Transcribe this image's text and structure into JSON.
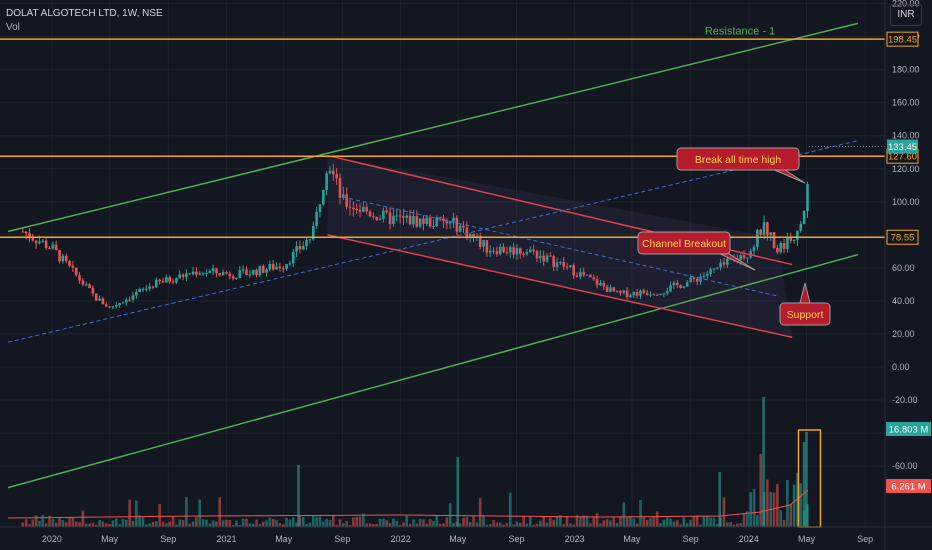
{
  "header": {
    "symbol": "DOLAT ALGOTECH LTD, 1W, NSE",
    "indicator": "Vol",
    "currency": "INR"
  },
  "colors": {
    "up": "#26a69a",
    "down": "#ef5350",
    "hline": "#f5a623",
    "channel_green": "#4caf50",
    "channel_red": "#e0414f",
    "dashed": "#3f6fd6",
    "callout_bg": "#b71c2c",
    "callout_border": "#9e9e9e",
    "callout_text": "#ffd54f",
    "resistance_text": "#4caf50"
  },
  "chart_data": {
    "type": "candlestick",
    "title": "DOLAT ALGOTECH LTD, 1W, NSE",
    "y_ticks": [
      "220.00",
      "200.00",
      "180.00",
      "160.00",
      "140.00",
      "120.00",
      "100.00",
      "80.00",
      "60.00",
      "40.00",
      "20.00",
      "0.00",
      "-20.00",
      "-40.00",
      "-60.00"
    ],
    "ylim": [
      -70,
      230
    ],
    "x_ticks": [
      "2020",
      "May",
      "Sep",
      "2021",
      "May",
      "Sep",
      "2022",
      "May",
      "Sep",
      "2023",
      "May",
      "Sep",
      "2024",
      "May",
      "Sep"
    ],
    "x_range": [
      "2019-10",
      "2024-09"
    ],
    "price_path": [
      [
        "2019-11",
        82
      ],
      [
        "2020-01",
        72
      ],
      [
        "2020-04",
        42
      ],
      [
        "2020-05",
        36
      ],
      [
        "2020-08",
        50
      ],
      [
        "2020-11",
        58
      ],
      [
        "2021-02",
        56
      ],
      [
        "2021-05",
        62
      ],
      [
        "2021-07",
        80
      ],
      [
        "2021-08",
        126
      ],
      [
        "2021-09",
        100
      ],
      [
        "2021-12",
        90
      ],
      [
        "2022-03",
        88
      ],
      [
        "2022-05",
        86
      ],
      [
        "2022-07",
        72
      ],
      [
        "2022-10",
        70
      ],
      [
        "2023-01",
        58
      ],
      [
        "2023-04",
        44
      ],
      [
        "2023-07",
        46
      ],
      [
        "2023-09",
        52
      ],
      [
        "2023-11",
        60
      ],
      [
        "2024-01",
        70
      ],
      [
        "2024-02",
        86
      ],
      [
        "2024-03",
        72
      ],
      [
        "2024-04",
        78
      ],
      [
        "2024-05",
        100
      ],
      [
        "2024-05-20",
        133.45
      ]
    ],
    "horizontal_levels": [
      {
        "value": 198.45,
        "label": "198.45"
      },
      {
        "value": 127.6,
        "label": "127.60"
      },
      {
        "value": 78.55,
        "label": "78.55"
      }
    ],
    "last_price": {
      "value": 133.45,
      "label": "133.45"
    },
    "volume_badges": [
      {
        "value": "16.803 M",
        "color": "#26a69a"
      },
      {
        "value": "6.261 M",
        "color": "#ef5350"
      }
    ],
    "annotations": [
      {
        "text": "Resistance - 1",
        "kind": "label"
      },
      {
        "text": "Break all time high",
        "kind": "callout"
      },
      {
        "text": "Channel Breakout",
        "kind": "callout"
      },
      {
        "text": "Support",
        "kind": "callout"
      }
    ]
  }
}
